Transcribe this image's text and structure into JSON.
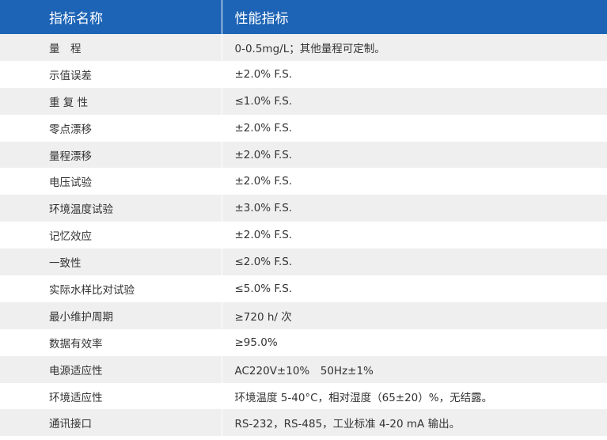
{
  "table": {
    "headers": [
      "指标名称",
      "性能指标"
    ],
    "rows": [
      [
        "量　程",
        "0-0.5mg/L；其他量程可定制。"
      ],
      [
        "示值误差",
        "±2.0% F.S."
      ],
      [
        "重 复 性",
        "≤1.0% F.S."
      ],
      [
        "零点漂移",
        "±2.0% F.S."
      ],
      [
        "量程漂移",
        "±2.0% F.S."
      ],
      [
        "电压试验",
        "±2.0% F.S."
      ],
      [
        "环境温度试验",
        "±3.0% F.S."
      ],
      [
        "记忆效应",
        "±2.0% F.S."
      ],
      [
        "一致性",
        "≤2.0% F.S."
      ],
      [
        "实际水样比对试验",
        "≤5.0% F.S."
      ],
      [
        "最小维护周期",
        "≥720 h/ 次"
      ],
      [
        "数据有效率",
        "≥95.0%"
      ],
      [
        "电源适应性",
        "AC220V±10%　50Hz±1%"
      ],
      [
        "环境适应性",
        "环境温度 5-40°C，相对湿度（65±20）%，无结露。"
      ],
      [
        "通讯接口",
        "RS-232，RS-485，工业标准 4-20 mA 输出。"
      ]
    ]
  },
  "colors": {
    "header_bg": "#1d64b6",
    "header_text": "#ffffff",
    "row_stripe": "#efefef",
    "row_plain": "#ffffff",
    "cell_text": "#333333"
  }
}
